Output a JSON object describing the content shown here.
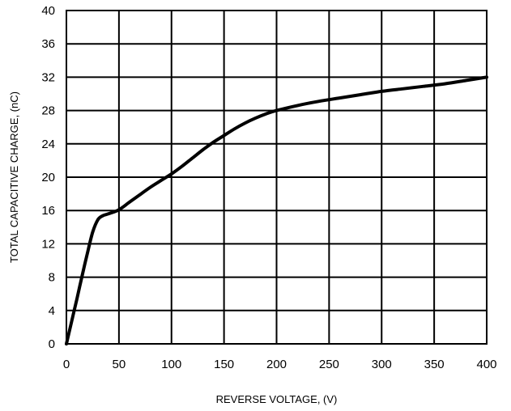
{
  "chart_data": {
    "type": "line",
    "title": "",
    "xlabel": "REVERSE VOLTAGE, (V)",
    "ylabel": "TOTAL CAPACITIVE CHARGE, (nC)",
    "xlim": [
      0,
      400
    ],
    "ylim": [
      0,
      40
    ],
    "xticks": [
      0,
      50,
      100,
      150,
      200,
      250,
      300,
      350,
      400
    ],
    "yticks": [
      0,
      4,
      8,
      12,
      16,
      20,
      24,
      28,
      32,
      36,
      40
    ],
    "grid": true,
    "series": [
      {
        "color": "#000000",
        "x": [
          0,
          5,
          10,
          15,
          20,
          25,
          30,
          35,
          40,
          50,
          60,
          70,
          80,
          90,
          100,
          110,
          120,
          130,
          140,
          150,
          160,
          170,
          180,
          190,
          200,
          220,
          240,
          260,
          280,
          300,
          320,
          340,
          360,
          380,
          400
        ],
        "y": [
          0,
          2.7,
          5.4,
          8.2,
          10.9,
          13.4,
          14.9,
          15.4,
          15.6,
          16.1,
          17.0,
          17.9,
          18.8,
          19.6,
          20.4,
          21.3,
          22.3,
          23.3,
          24.2,
          25.0,
          25.8,
          26.5,
          27.1,
          27.6,
          28.0,
          28.6,
          29.1,
          29.5,
          29.9,
          30.3,
          30.6,
          30.9,
          31.2,
          31.6,
          32.0
        ]
      }
    ]
  }
}
